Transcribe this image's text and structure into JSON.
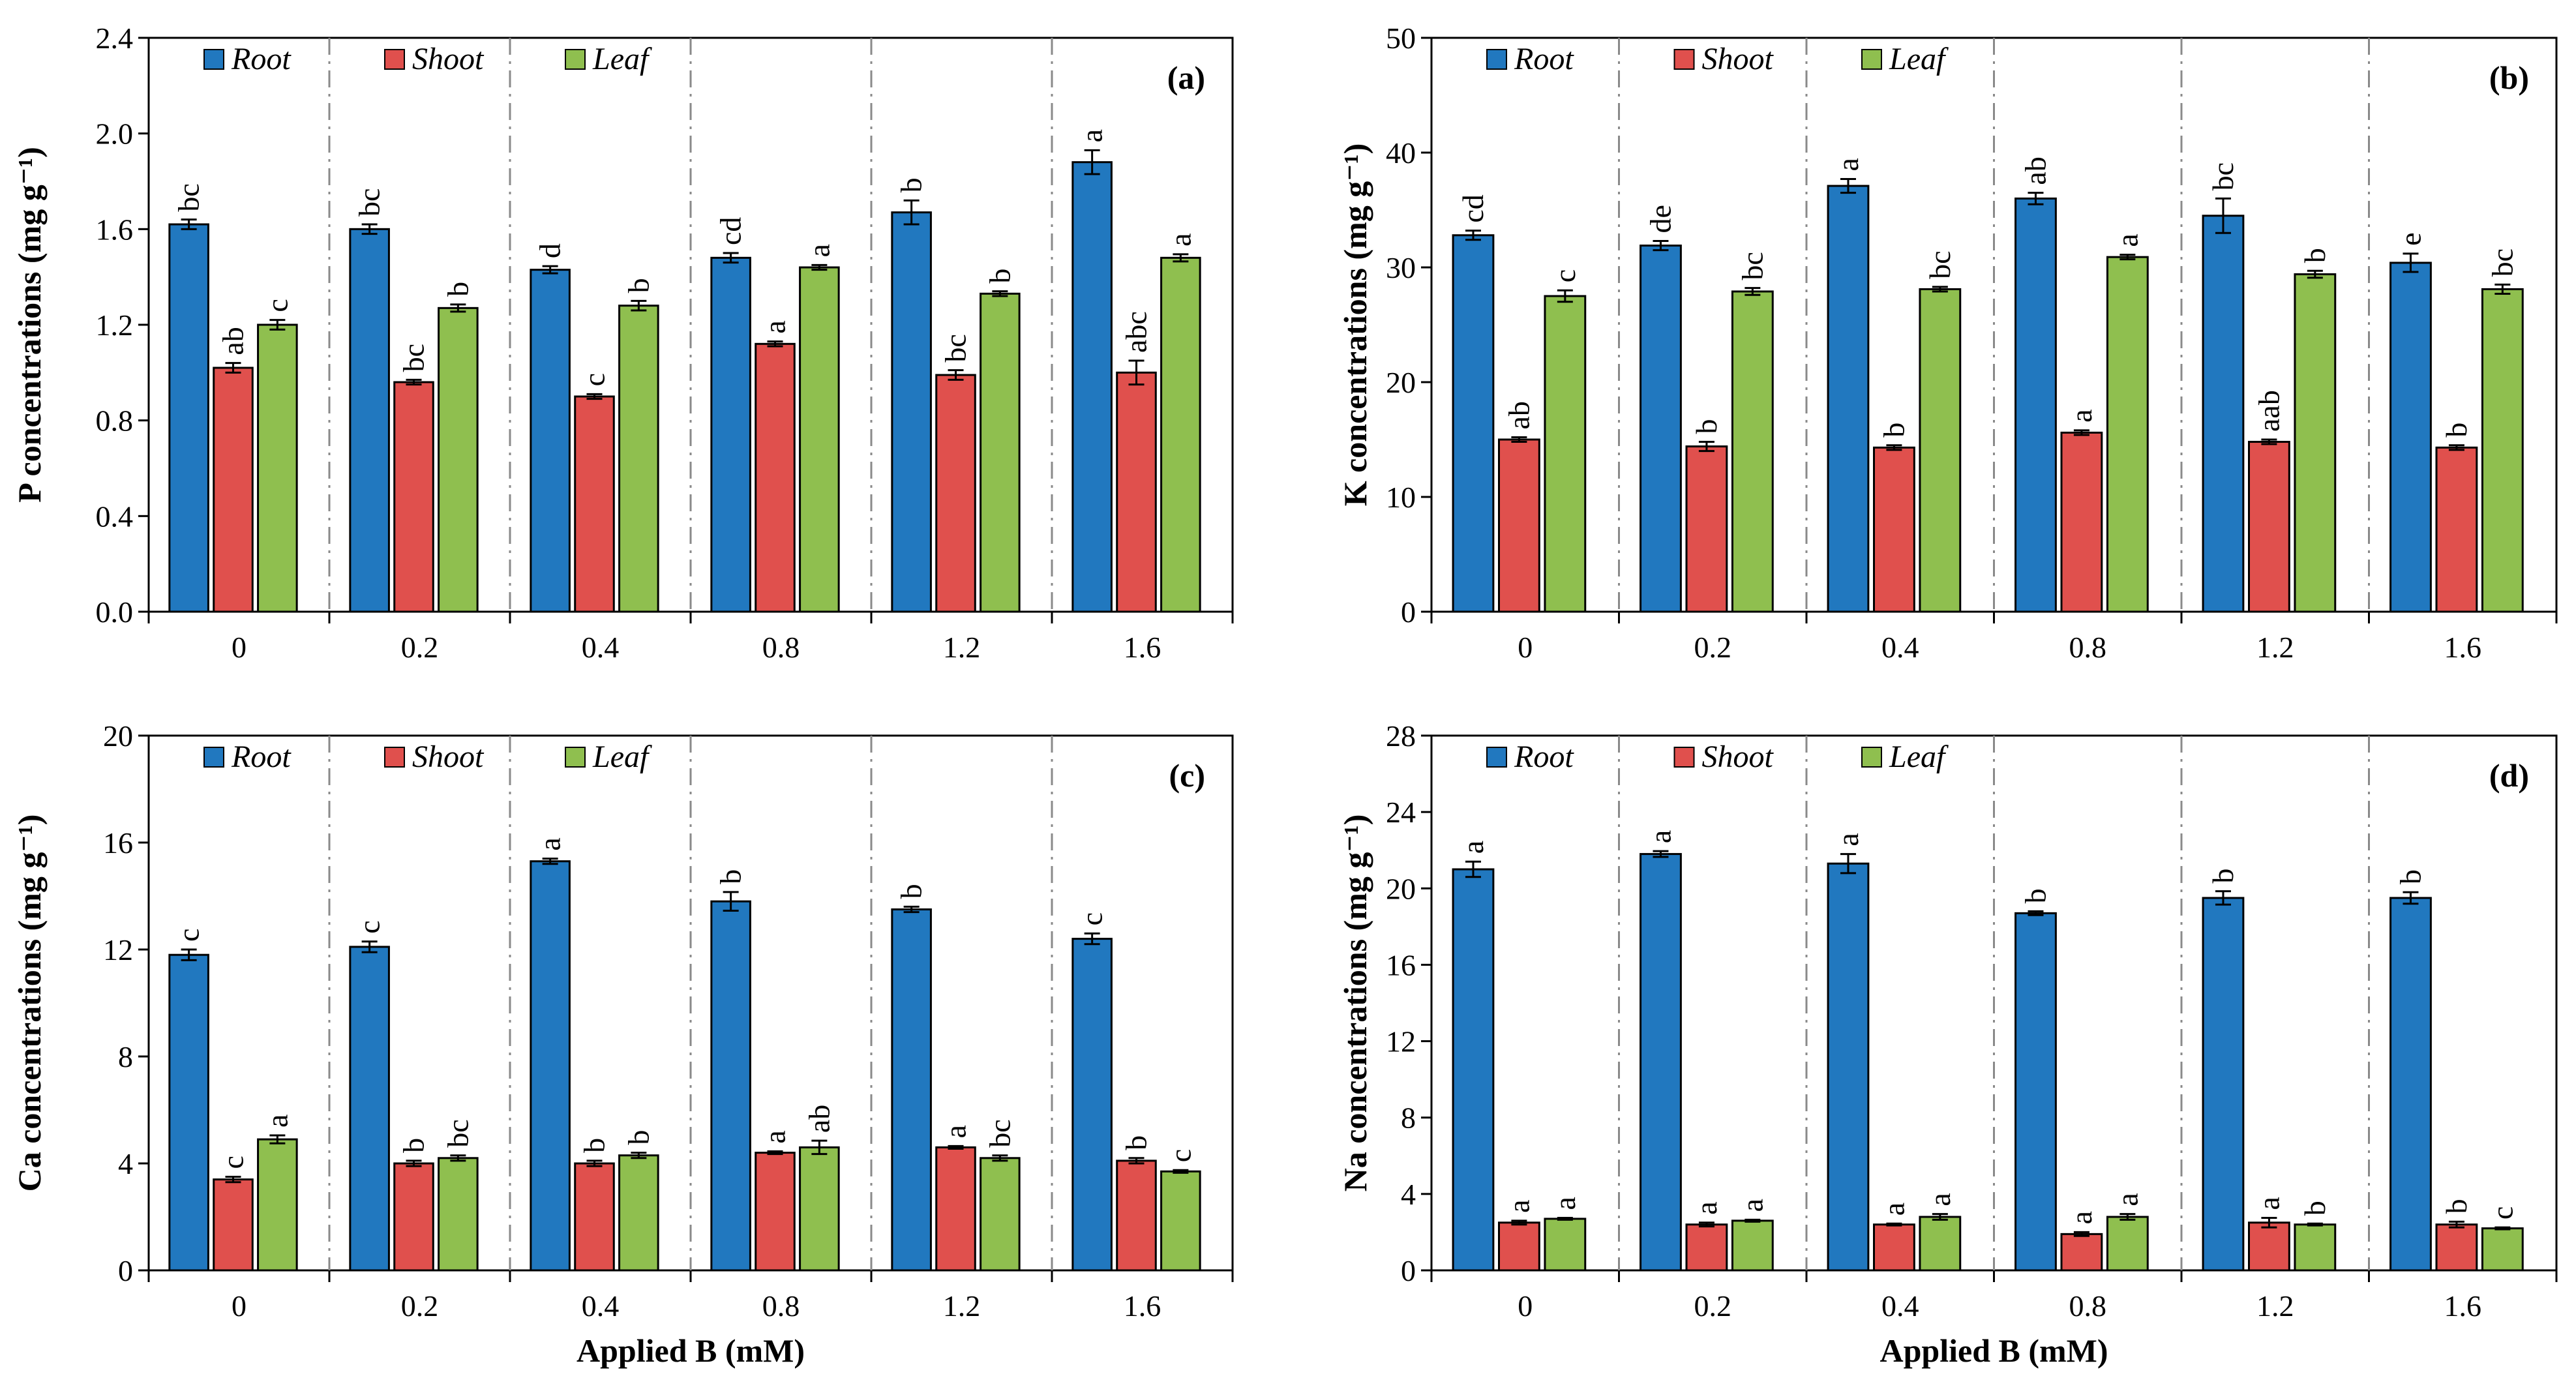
{
  "chart_data": [
    {
      "type": "bar",
      "panel": "(a)",
      "ylabel": "P  concentrations (mg g⁻¹)",
      "xlabel": "",
      "ylim": [
        0,
        2.4
      ],
      "yticks": [
        "0.0",
        "0.4",
        "0.8",
        "1.2",
        "1.6",
        "2.0",
        "2.4"
      ],
      "categories": [
        "0",
        "0.2",
        "0.4",
        "0.8",
        "1.2",
        "1.6"
      ],
      "series": [
        {
          "name": "Root",
          "color": "#2178bf",
          "values": [
            1.62,
            1.6,
            1.43,
            1.48,
            1.67,
            1.88
          ],
          "errors": [
            0.02,
            0.02,
            0.015,
            0.02,
            0.05,
            0.05
          ],
          "letters": [
            "bc",
            "bc",
            "d",
            "cd",
            "b",
            "a"
          ]
        },
        {
          "name": "Shoot",
          "color": "#e0504d",
          "values": [
            1.02,
            0.96,
            0.9,
            1.12,
            0.99,
            1.0
          ],
          "errors": [
            0.02,
            0.01,
            0.01,
            0.01,
            0.02,
            0.05
          ],
          "letters": [
            "ab",
            "bc",
            "c",
            "a",
            "bc",
            "abc"
          ]
        },
        {
          "name": "Leaf",
          "color": "#8fbf4f",
          "values": [
            1.2,
            1.27,
            1.28,
            1.44,
            1.33,
            1.48
          ],
          "errors": [
            0.02,
            0.015,
            0.02,
            0.01,
            0.01,
            0.015
          ],
          "letters": [
            "c",
            "b",
            "b",
            "a",
            "b",
            "a"
          ]
        }
      ]
    },
    {
      "type": "bar",
      "panel": "(b)",
      "ylabel": "K  concentrations (mg g⁻¹)",
      "xlabel": "",
      "ylim": [
        0,
        50
      ],
      "yticks": [
        "0",
        "10",
        "20",
        "30",
        "40",
        "50"
      ],
      "categories": [
        "0",
        "0.2",
        "0.4",
        "0.8",
        "1.2",
        "1.6"
      ],
      "series": [
        {
          "name": "Root",
          "color": "#2178bf",
          "values": [
            32.8,
            31.9,
            37.1,
            36.0,
            34.5,
            30.4
          ],
          "errors": [
            0.4,
            0.4,
            0.6,
            0.5,
            1.5,
            0.8
          ],
          "letters": [
            "cd",
            "de",
            "a",
            "ab",
            "bc",
            "e"
          ]
        },
        {
          "name": "Shoot",
          "color": "#e0504d",
          "values": [
            15.0,
            14.4,
            14.3,
            15.6,
            14.8,
            14.3
          ],
          "errors": [
            0.2,
            0.4,
            0.2,
            0.2,
            0.2,
            0.2
          ],
          "letters": [
            "ab",
            "b",
            "b",
            "a",
            "aab",
            "b"
          ]
        },
        {
          "name": "Leaf",
          "color": "#8fbf4f",
          "values": [
            27.5,
            27.9,
            28.1,
            30.9,
            29.4,
            28.1
          ],
          "errors": [
            0.5,
            0.3,
            0.2,
            0.2,
            0.3,
            0.4
          ],
          "letters": [
            "c",
            "bc",
            "bc",
            "a",
            "b",
            "bc"
          ]
        }
      ]
    },
    {
      "type": "bar",
      "panel": "(c)",
      "ylabel": "Ca  concentrations (mg g⁻¹)",
      "xlabel": "Applied B (mM)",
      "ylim": [
        0,
        20
      ],
      "yticks": [
        "0",
        "4",
        "8",
        "12",
        "16",
        "20"
      ],
      "categories": [
        "0",
        "0.2",
        "0.4",
        "0.8",
        "1.2",
        "1.6"
      ],
      "series": [
        {
          "name": "Root",
          "color": "#2178bf",
          "values": [
            11.8,
            12.1,
            15.3,
            13.8,
            13.5,
            12.4
          ],
          "errors": [
            0.2,
            0.2,
            0.1,
            0.35,
            0.1,
            0.2
          ],
          "letters": [
            "c",
            "c",
            "a",
            "b",
            "b",
            "c"
          ]
        },
        {
          "name": "Shoot",
          "color": "#e0504d",
          "values": [
            3.4,
            4.0,
            4.0,
            4.4,
            4.6,
            4.1
          ],
          "errors": [
            0.1,
            0.1,
            0.1,
            0.05,
            0.05,
            0.1
          ],
          "letters": [
            "c",
            "b",
            "b",
            "a",
            "a",
            "b"
          ]
        },
        {
          "name": "Leaf",
          "color": "#8fbf4f",
          "values": [
            4.9,
            4.2,
            4.3,
            4.6,
            4.2,
            3.7
          ],
          "errors": [
            0.15,
            0.1,
            0.1,
            0.25,
            0.1,
            0.05
          ],
          "letters": [
            "a",
            "bc",
            "b",
            "ab",
            "bc",
            "c"
          ]
        }
      ]
    },
    {
      "type": "bar",
      "panel": "(d)",
      "ylabel": "Na  concentrations (mg g⁻¹)",
      "xlabel": "Applied B (mM)",
      "ylim": [
        0,
        28
      ],
      "yticks": [
        "0",
        "4",
        "8",
        "12",
        "16",
        "20",
        "24",
        "28"
      ],
      "categories": [
        "0",
        "0.2",
        "0.4",
        "0.8",
        "1.2",
        "1.6"
      ],
      "series": [
        {
          "name": "Root",
          "color": "#2178bf",
          "values": [
            21.0,
            21.8,
            21.3,
            18.7,
            19.5,
            19.5
          ],
          "errors": [
            0.4,
            0.15,
            0.5,
            0.1,
            0.35,
            0.3
          ],
          "letters": [
            "a",
            "a",
            "a",
            "b",
            "b",
            "b"
          ]
        },
        {
          "name": "Shoot",
          "color": "#e0504d",
          "values": [
            2.5,
            2.4,
            2.4,
            1.9,
            2.5,
            2.4
          ],
          "errors": [
            0.1,
            0.1,
            0.05,
            0.1,
            0.25,
            0.15
          ],
          "letters": [
            "a",
            "a",
            "a",
            "a",
            "a",
            "b"
          ]
        },
        {
          "name": "Leaf",
          "color": "#8fbf4f",
          "values": [
            2.7,
            2.6,
            2.8,
            2.8,
            2.4,
            2.2
          ],
          "errors": [
            0.05,
            0.05,
            0.15,
            0.15,
            0.05,
            0.05
          ],
          "letters": [
            "a",
            "a",
            "a",
            "a",
            "b",
            "c"
          ]
        }
      ]
    }
  ]
}
